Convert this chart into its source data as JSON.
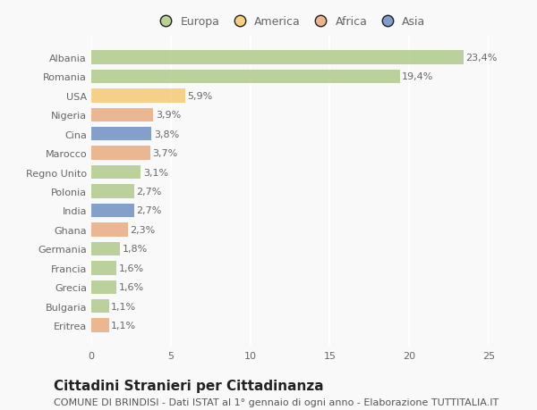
{
  "countries": [
    "Albania",
    "Romania",
    "USA",
    "Nigeria",
    "Cina",
    "Marocco",
    "Regno Unito",
    "Polonia",
    "India",
    "Ghana",
    "Germania",
    "Francia",
    "Grecia",
    "Bulgaria",
    "Eritrea"
  ],
  "values": [
    23.4,
    19.4,
    5.9,
    3.9,
    3.8,
    3.7,
    3.1,
    2.7,
    2.7,
    2.3,
    1.8,
    1.6,
    1.6,
    1.1,
    1.1
  ],
  "labels": [
    "23,4%",
    "19,4%",
    "5,9%",
    "3,9%",
    "3,8%",
    "3,7%",
    "3,1%",
    "2,7%",
    "2,7%",
    "2,3%",
    "1,8%",
    "1,6%",
    "1,6%",
    "1,1%",
    "1,1%"
  ],
  "bar_colors": [
    "#aec986",
    "#aec986",
    "#f5c870",
    "#e8a87c",
    "#6b8cbf",
    "#e8a87c",
    "#aec986",
    "#aec986",
    "#6b8cbf",
    "#e8a87c",
    "#aec986",
    "#aec986",
    "#aec986",
    "#aec986",
    "#e8a87c"
  ],
  "legend_labels": [
    "Europa",
    "America",
    "Africa",
    "Asia"
  ],
  "legend_colors": [
    "#aec986",
    "#f5c870",
    "#e8a87c",
    "#6b8cbf"
  ],
  "xlim": [
    0,
    25
  ],
  "xticks": [
    0,
    5,
    10,
    15,
    20,
    25
  ],
  "title": "Cittadini Stranieri per Cittadinanza",
  "subtitle": "COMUNE DI BRINDISI - Dati ISTAT al 1° gennaio di ogni anno - Elaborazione TUTTITALIA.IT",
  "background_color": "#f9f9f9",
  "grid_color": "#ffffff",
  "bar_height": 0.72,
  "title_fontsize": 11,
  "subtitle_fontsize": 8,
  "label_fontsize": 8,
  "tick_fontsize": 8,
  "legend_fontsize": 9
}
